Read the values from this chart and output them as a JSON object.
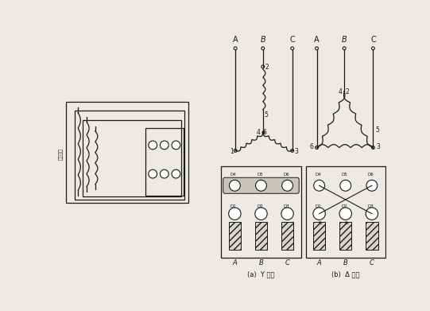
{
  "bg_color": "#ede9e4",
  "line_color": "#1a1a1a",
  "fig_width": 5.41,
  "fig_height": 3.91,
  "dpi": 100,
  "labels": {
    "ya_caption": "(a)  Y 接法",
    "yb_caption": "(b)  Δ 接法",
    "vertical_label": "定子绕组"
  }
}
